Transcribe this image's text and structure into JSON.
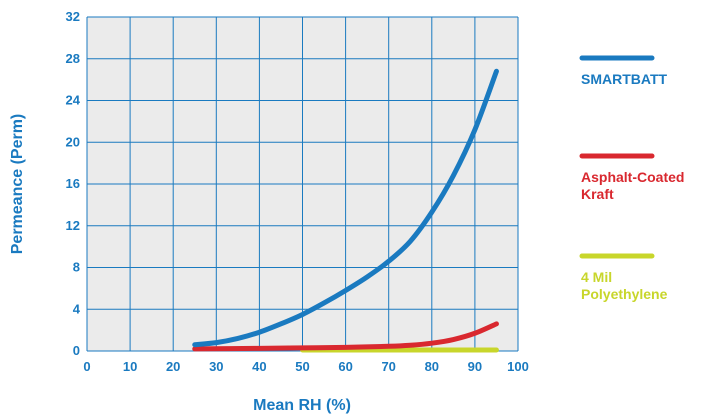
{
  "chart_data": {
    "type": "line",
    "xlabel": "Mean RH (%)",
    "ylabel": "Permeance (Perm)",
    "xlim": [
      0,
      100
    ],
    "ylim": [
      0,
      32
    ],
    "xticks": [
      "0",
      "10",
      "20",
      "30",
      "40",
      "50",
      "60",
      "70",
      "80",
      "90",
      "100"
    ],
    "yticks": [
      "0",
      "4",
      "8",
      "12",
      "16",
      "20",
      "24",
      "28",
      "32"
    ],
    "grid": true,
    "legend_position": "right",
    "series": [
      {
        "name": "SMARTBATT",
        "color": "#1a7ac0",
        "legend_lines": [
          "SMARTBATT"
        ],
        "x": [
          25,
          30,
          35,
          40,
          45,
          50,
          55,
          60,
          65,
          70,
          75,
          80,
          85,
          90,
          95
        ],
        "y": [
          0.6,
          0.8,
          1.2,
          1.8,
          2.6,
          3.5,
          4.6,
          5.8,
          7.1,
          8.6,
          10.5,
          13.3,
          16.8,
          21.2,
          26.8
        ]
      },
      {
        "name": "Asphalt-Coated Kraft",
        "color": "#d9282f",
        "legend_lines": [
          "Asphalt-Coated",
          "Kraft"
        ],
        "x": [
          25,
          40,
          50,
          60,
          70,
          75,
          80,
          85,
          90,
          95
        ],
        "y": [
          0.2,
          0.25,
          0.3,
          0.35,
          0.45,
          0.55,
          0.75,
          1.1,
          1.7,
          2.6
        ]
      },
      {
        "name": "4 Mil Polyethylene",
        "color": "#c8d62b",
        "legend_lines": [
          "4 Mil",
          "Polyethylene"
        ],
        "x": [
          50,
          95
        ],
        "y": [
          0.1,
          0.1
        ]
      }
    ]
  }
}
